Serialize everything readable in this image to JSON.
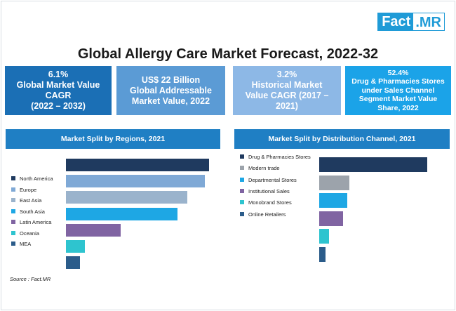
{
  "logo": {
    "part1": "Fact",
    "part2": ".MR"
  },
  "title": "Global Allergy Care Market Forecast, 2022-32",
  "kpis": [
    {
      "value": "6.1%",
      "text": "Global Market Value\nCAGR\n(2022 – 2032)",
      "color": "#1b6fb5"
    },
    {
      "value": "US$ 22 Billion",
      "text": "Global Addressable\nMarket Value, 2022",
      "color": "#5b9bd5"
    },
    {
      "value": "3.2%",
      "text": "Historical Market\nValue CAGR (2017 –\n2021)",
      "color": "#8db8e6"
    },
    {
      "value": "52.4%",
      "text": "Drug & Pharmacies Stores\nunder Sales Channel\nSegment Market Value\nShare, 2022",
      "color": "#1ba3e8"
    }
  ],
  "chart_data": [
    {
      "type": "bar",
      "orientation": "horizontal",
      "title": "Market Split by Regions, 2021",
      "categories": [
        "North America",
        "Europe",
        "East Asia",
        "South Asia",
        "Latin America",
        "Oceania",
        "MEA"
      ],
      "values": [
        100,
        97,
        85,
        78,
        38,
        13,
        10
      ],
      "colors": [
        "#1f3a5f",
        "#7fa9d6",
        "#9ab3cc",
        "#1ea7e4",
        "#8064a2",
        "#2ec4cf",
        "#2b5c8a"
      ],
      "legend_position": "left",
      "grid": false
    },
    {
      "type": "bar",
      "orientation": "horizontal",
      "title": "Market Split by Distribution Channel, 2021",
      "categories": [
        "Drug & Pharmacies Stores",
        "Modern trade",
        "Departmental Stores",
        "Institutional Sales",
        "Monobrand Stores",
        "Online Retailers"
      ],
      "values": [
        100,
        28,
        26,
        22,
        9,
        6
      ],
      "colors": [
        "#1f3a5f",
        "#9ca3ab",
        "#1ea7e4",
        "#8064a2",
        "#2ec4cf",
        "#2b5c8a"
      ],
      "legend_position": "left",
      "grid": false
    }
  ],
  "source": "Source : Fact.MR"
}
